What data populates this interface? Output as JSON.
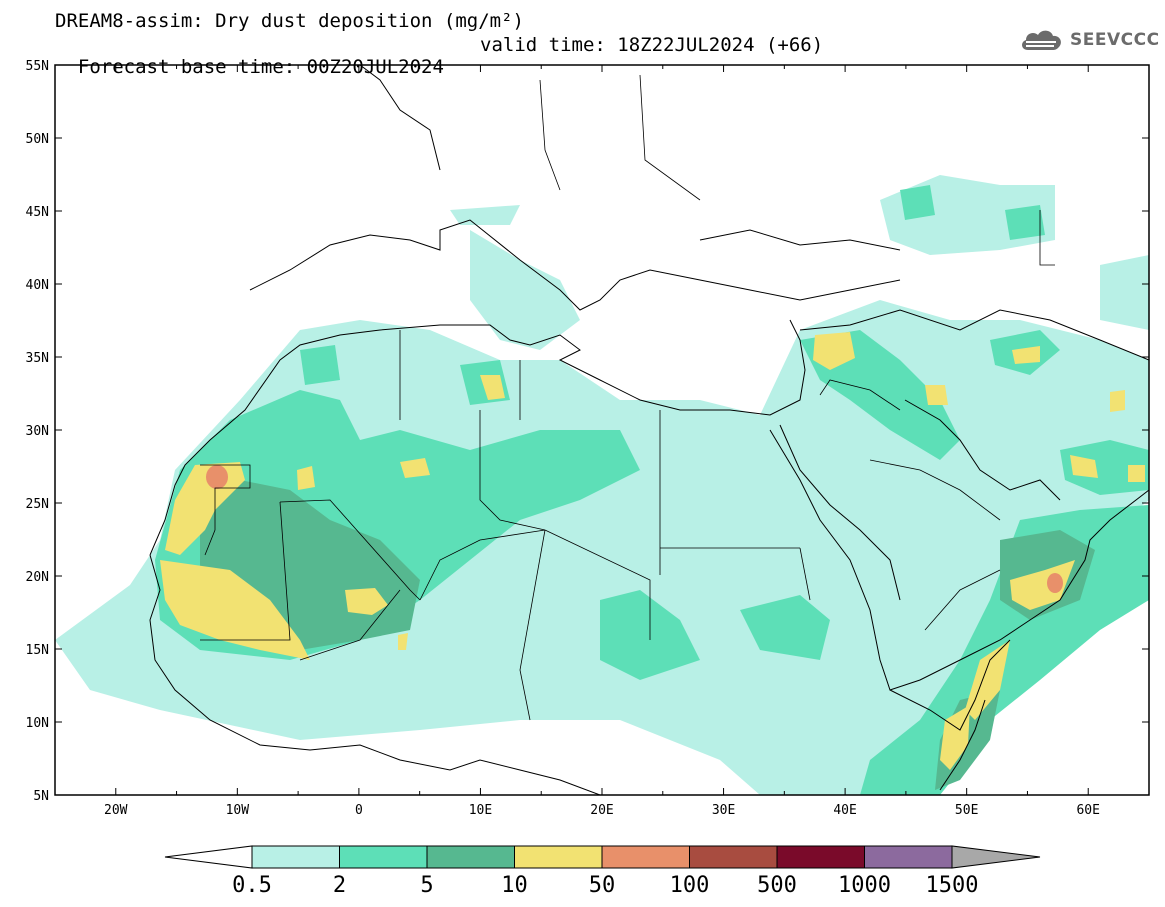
{
  "header": {
    "title": "DREAM8-assim: Dry dust deposition (mg/m²)",
    "base_time": "Forecast base time: 00Z20JUL2024",
    "valid_time": "valid time: 18Z22JUL2024 (+66)"
  },
  "logo": {
    "text": "SEEVCCC",
    "icon": "cloud-icon",
    "color": "#6b6b6b"
  },
  "map": {
    "lon_range": [
      -25,
      65
    ],
    "lat_range": [
      5,
      55
    ],
    "lat_labels": [
      "5N",
      "10N",
      "15N",
      "20N",
      "25N",
      "30N",
      "35N",
      "40N",
      "45N",
      "50N",
      "55N"
    ],
    "lon_labels": [
      "20W",
      "10W",
      "0",
      "10E",
      "20E",
      "30E",
      "40E",
      "50E",
      "60E"
    ]
  },
  "colorbar": {
    "labels": [
      "0.5",
      "2",
      "5",
      "10",
      "50",
      "100",
      "500",
      "1000",
      "1500"
    ],
    "colors": [
      "#b8f0e6",
      "#5ddfb7",
      "#56b890",
      "#f2e272",
      "#e8906a",
      "#a84c40",
      "#7a0a2a",
      "#8c6a9e"
    ],
    "over_color": "#a8a8a8",
    "under_color": "#ffffff"
  }
}
